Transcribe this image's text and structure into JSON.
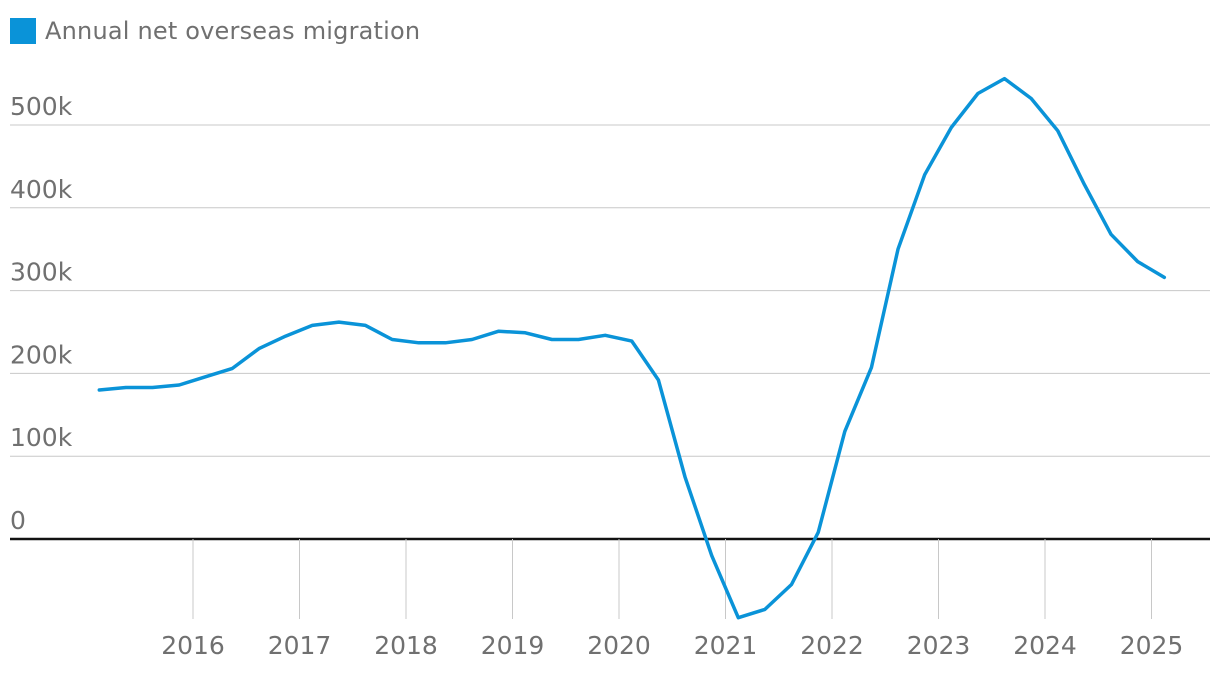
{
  "legend": {
    "label": "Annual net overseas migration",
    "color": "#0a93d8"
  },
  "colors": {
    "line": "#0a93d8",
    "grid": "#c8c8c8",
    "zero": "#121212",
    "text": "#707070"
  },
  "chart_data": {
    "type": "line",
    "title": "",
    "xlabel": "",
    "ylabel": "",
    "ylim": [
      -95000,
      555000
    ],
    "y_ticks": [
      {
        "value": 0,
        "label": "0"
      },
      {
        "value": 100000,
        "label": "100k"
      },
      {
        "value": 200000,
        "label": "200k"
      },
      {
        "value": 300000,
        "label": "300k"
      },
      {
        "value": 400000,
        "label": "400k"
      },
      {
        "value": 500000,
        "label": "500k"
      }
    ],
    "x_ticks": [
      "2016",
      "2017",
      "2018",
      "2019",
      "2020",
      "2021",
      "2022",
      "2023",
      "2024",
      "2025"
    ],
    "x_range": [
      2015.25,
      2025.25
    ],
    "grid": true,
    "series": [
      {
        "name": "Annual net overseas migration",
        "x": [
          2015.12,
          2015.37,
          2015.62,
          2015.87,
          2016.12,
          2016.37,
          2016.62,
          2016.87,
          2017.12,
          2017.37,
          2017.62,
          2017.87,
          2018.12,
          2018.37,
          2018.62,
          2018.87,
          2019.12,
          2019.37,
          2019.62,
          2019.87,
          2020.12,
          2020.37,
          2020.62,
          2020.87,
          2021.12,
          2021.37,
          2021.62,
          2021.87,
          2022.12,
          2022.37,
          2022.62,
          2022.87,
          2023.12,
          2023.37,
          2023.62,
          2023.87,
          2024.12,
          2024.37,
          2024.62,
          2024.87,
          2025.12
        ],
        "values": [
          180000,
          183000,
          183000,
          186000,
          196000,
          206000,
          230000,
          245000,
          258000,
          262000,
          258000,
          241000,
          237000,
          237000,
          241000,
          251000,
          249000,
          241000,
          241000,
          246000,
          239000,
          192000,
          75000,
          -20000,
          -95000,
          -85000,
          -55000,
          8000,
          130000,
          207000,
          350000,
          440000,
          497000,
          538000,
          556000,
          532000,
          493000,
          428000,
          368000,
          335000,
          316000
        ]
      }
    ]
  }
}
